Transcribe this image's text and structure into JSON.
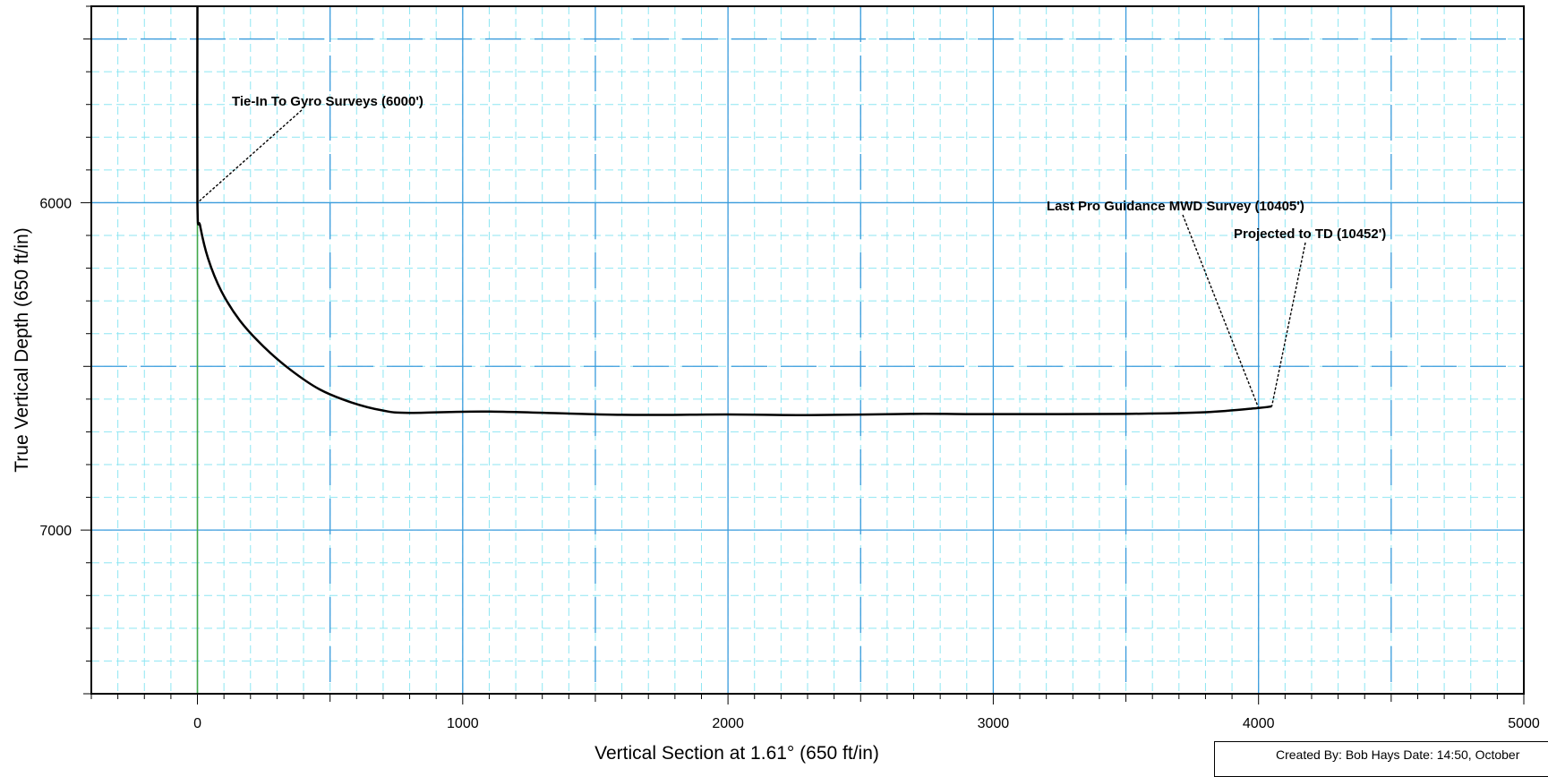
{
  "chart_data": {
    "type": "line",
    "xlabel": "Vertical Section at 1.61° (650 ft/in)",
    "ylabel": "True Vertical Depth (650 ft/in)",
    "xlim": [
      -400,
      5000
    ],
    "ylim": [
      7500,
      5400
    ],
    "y_inverted": true,
    "grid": true,
    "x_ticks": [
      0,
      1000,
      2000,
      3000,
      4000,
      5000
    ],
    "y_ticks": [
      6000,
      7000
    ],
    "series": [
      {
        "color": "#000000",
        "x": [
          0,
          0,
          10,
          40,
          90,
          160,
          250,
          350,
          460,
          580,
          700,
          800,
          1100,
          1600,
          2000,
          2300,
          2700,
          3000,
          3500,
          3800,
          4000,
          4050
        ],
        "y": [
          5400,
          6000,
          6070,
          6170,
          6270,
          6360,
          6440,
          6510,
          6570,
          6610,
          6635,
          6642,
          6638,
          6648,
          6647,
          6649,
          6645,
          6646,
          6645,
          6640,
          6627,
          6622
        ]
      }
    ],
    "reference_line": {
      "x": 0,
      "y_from": 6000,
      "y_to": 7500,
      "color": "#44aa44"
    },
    "annotations": [
      {
        "text": "Tie-In To Gyro Surveys (6000')",
        "point": [
          0,
          6000
        ]
      },
      {
        "text": "Last Pro Guidance MWD Survey (10405')",
        "point": [
          4000,
          6627
        ]
      },
      {
        "text": "Projected to TD (10452')",
        "point": [
          4050,
          6622
        ]
      }
    ],
    "colors": {
      "major_grid": "#3a9bdc",
      "minor_grid": "#8ee6f2",
      "curve": "#000000"
    }
  },
  "footer": {
    "created_text": "Created By: Bob Hays Date:  14:50, October"
  }
}
